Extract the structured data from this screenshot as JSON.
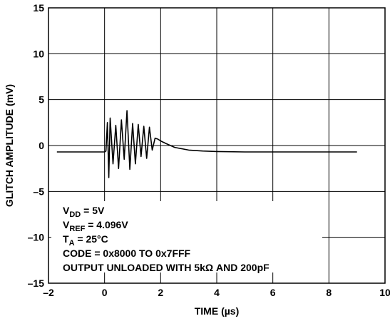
{
  "chart_data": {
    "type": "line",
    "xlabel": "TIME (µs)",
    "ylabel": "GLITCH AMPLITUDE (mV)",
    "xlim": [
      -2,
      10
    ],
    "ylim": [
      -15,
      15
    ],
    "x_ticks": [
      -2,
      0,
      2,
      4,
      6,
      8,
      10
    ],
    "x_tick_labels": [
      "–2",
      "0",
      "2",
      "4",
      "6",
      "8",
      "10"
    ],
    "y_ticks": [
      15,
      10,
      5,
      0,
      -5,
      -10,
      -15
    ],
    "y_tick_labels": [
      "15",
      "10",
      "5",
      "0",
      "–5",
      "–10",
      "–15"
    ],
    "grid": true,
    "series": [
      {
        "color": "#000000",
        "x": [
          -1.7,
          0.0,
          0.05,
          0.1,
          0.15,
          0.2,
          0.3,
          0.4,
          0.5,
          0.6,
          0.7,
          0.8,
          0.9,
          1.0,
          1.1,
          1.2,
          1.3,
          1.4,
          1.5,
          1.6,
          1.7,
          1.8,
          1.9,
          2.0,
          2.2,
          2.5,
          3.0,
          3.5,
          4.0,
          5.0,
          6.0,
          7.0,
          8.0,
          9.0
        ],
        "y": [
          -0.7,
          -0.7,
          -0.6,
          2.5,
          -3.5,
          3.0,
          -2.0,
          2.2,
          -2.5,
          2.8,
          -1.5,
          3.8,
          -2.6,
          2.4,
          -2.0,
          2.3,
          -1.2,
          2.1,
          -1.4,
          2.0,
          -0.5,
          0.8,
          0.7,
          0.5,
          0.2,
          -0.2,
          -0.5,
          -0.6,
          -0.65,
          -0.7,
          -0.7,
          -0.7,
          -0.7,
          -0.7
        ]
      }
    ],
    "annotations": {
      "vdd": {
        "main": "V",
        "sub": "DD",
        "rest": " = 5V"
      },
      "vref": {
        "main": "V",
        "sub": "REF",
        "rest": " = 4.096V"
      },
      "ta": {
        "main": "T",
        "sub": "A",
        "rest": " = 25°C"
      },
      "code": "CODE = 0x8000 TO 0x7FFF",
      "output": "OUTPUT UNLOADED WITH 5kΩ AND 200pF"
    }
  }
}
